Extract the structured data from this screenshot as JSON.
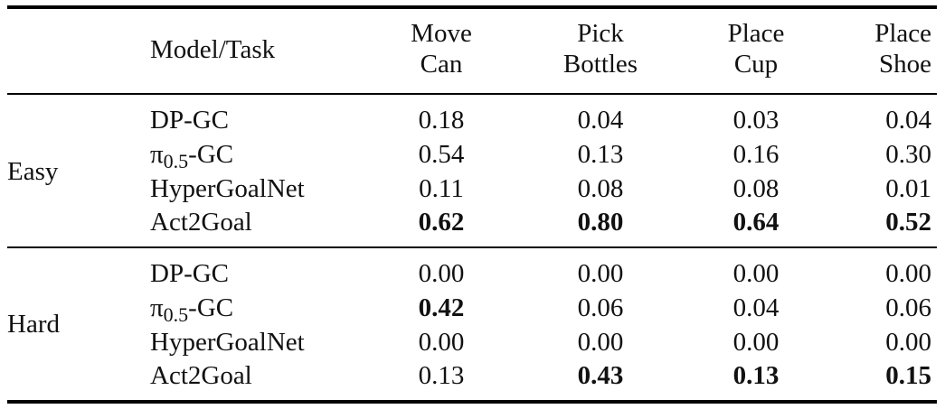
{
  "header": {
    "model_task": "Model/Task",
    "columns": [
      {
        "line1": "Move",
        "line2": "Can"
      },
      {
        "line1": "Pick",
        "line2": "Bottles"
      },
      {
        "line1": "Place",
        "line2": "Cup"
      },
      {
        "line1": "Place",
        "line2": "Shoe"
      }
    ]
  },
  "groups": [
    {
      "label": "Easy",
      "rows": [
        {
          "model": "DP-GC",
          "values": [
            "0.18",
            "0.04",
            "0.03",
            "0.04"
          ],
          "bold": [
            false,
            false,
            false,
            false
          ]
        },
        {
          "model_prefix": "π",
          "model_sub": "0.5",
          "model_suffix": "-GC",
          "values": [
            "0.54",
            "0.13",
            "0.16",
            "0.30"
          ],
          "bold": [
            false,
            false,
            false,
            false
          ]
        },
        {
          "model": "HyperGoalNet",
          "values": [
            "0.11",
            "0.08",
            "0.08",
            "0.01"
          ],
          "bold": [
            false,
            false,
            false,
            false
          ]
        },
        {
          "model": "Act2Goal",
          "values": [
            "0.62",
            "0.80",
            "0.64",
            "0.52"
          ],
          "bold": [
            true,
            true,
            true,
            true
          ]
        }
      ]
    },
    {
      "label": "Hard",
      "rows": [
        {
          "model": "DP-GC",
          "values": [
            "0.00",
            "0.00",
            "0.00",
            "0.00"
          ],
          "bold": [
            false,
            false,
            false,
            false
          ]
        },
        {
          "model_prefix": "π",
          "model_sub": "0.5",
          "model_suffix": "-GC",
          "values": [
            "0.42",
            "0.06",
            "0.04",
            "0.06"
          ],
          "bold": [
            true,
            false,
            false,
            false
          ]
        },
        {
          "model": "HyperGoalNet",
          "values": [
            "0.00",
            "0.00",
            "0.00",
            "0.00"
          ],
          "bold": [
            false,
            false,
            false,
            false
          ]
        },
        {
          "model": "Act2Goal",
          "values": [
            "0.13",
            "0.43",
            "0.13",
            "0.15"
          ],
          "bold": [
            false,
            true,
            true,
            true
          ]
        }
      ]
    }
  ]
}
